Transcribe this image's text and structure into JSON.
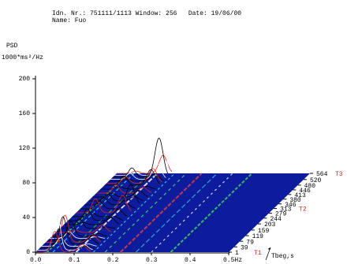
{
  "chart_data": {
    "type": "waterfall",
    "title": "Idn. Nr.: 751111/1113 Window: 256   Date: 19/06/00",
    "subtitle": "Name: Fuo",
    "ylabel": "PSD",
    "yunit": "1000*ms²/Hz",
    "zlabel": "Tbeg,s",
    "ylim": [
      0,
      200
    ],
    "yticks": [
      0,
      40,
      80,
      120,
      160,
      200
    ],
    "xlim": [
      0,
      0.5
    ],
    "xticks": [
      {
        "value": 0,
        "label": "0.0"
      },
      0.1,
      0.2,
      0.3,
      0.4,
      {
        "value": 0.5,
        "label": "0.5Hz"
      }
    ],
    "zlim": [
      1,
      564
    ],
    "zticks": [
      1,
      39,
      79,
      119,
      159,
      203,
      244,
      279,
      313,
      346,
      380,
      413,
      446,
      480,
      520,
      564
    ],
    "markers": [
      {
        "label": "T1",
        "value": 1
      },
      {
        "label": "T2",
        "value": 313
      },
      {
        "label": "T3",
        "value": 564
      }
    ],
    "surface_color": "#0c1c9c",
    "marker_color": "#e02020"
  }
}
